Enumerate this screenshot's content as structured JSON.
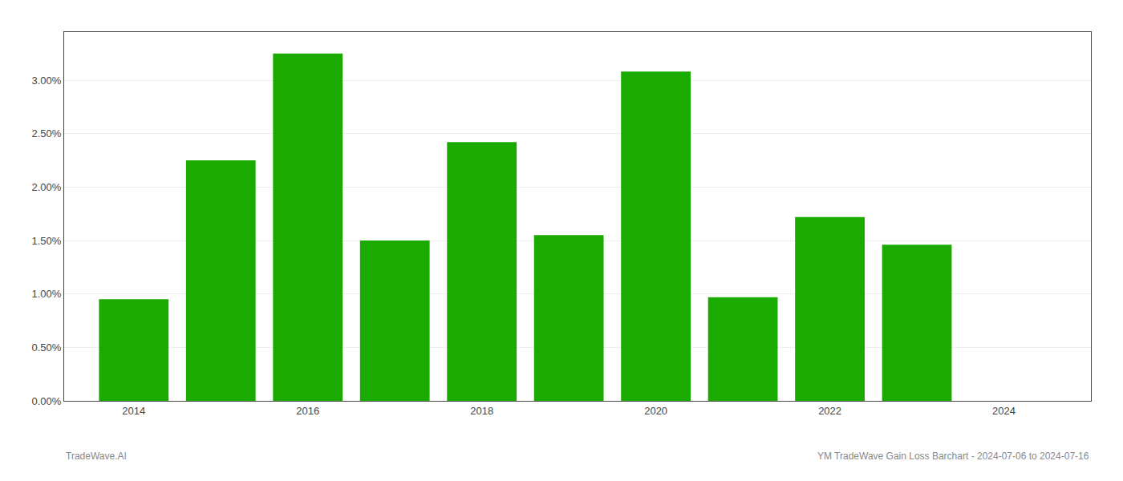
{
  "chart_data": {
    "type": "bar",
    "x": [
      2014,
      2015,
      2016,
      2017,
      2018,
      2019,
      2020,
      2021,
      2022,
      2023
    ],
    "values": [
      0.0095,
      0.0225,
      0.0325,
      0.015,
      0.0242,
      0.0155,
      0.0308,
      0.0097,
      0.0172,
      0.0146
    ],
    "color": "#1aaa00",
    "xlim": [
      2013.2,
      2025.0
    ],
    "xticks": [
      2014,
      2016,
      2018,
      2020,
      2022,
      2024
    ],
    "ylim": [
      0,
      0.0345
    ],
    "yticks": [
      {
        "value": 0.0,
        "label": "0.00%"
      },
      {
        "value": 0.005,
        "label": "0.50%"
      },
      {
        "value": 0.01,
        "label": "1.00%"
      },
      {
        "value": 0.015,
        "label": "1.50%"
      },
      {
        "value": 0.02,
        "label": "2.00%"
      },
      {
        "value": 0.025,
        "label": "2.50%"
      },
      {
        "value": 0.03,
        "label": "3.00%"
      }
    ],
    "grid": true,
    "annotations": [
      "TradeWave.AI",
      "YM TradeWave Gain Loss Barchart - 2024-07-06 to 2024-07-16"
    ]
  }
}
